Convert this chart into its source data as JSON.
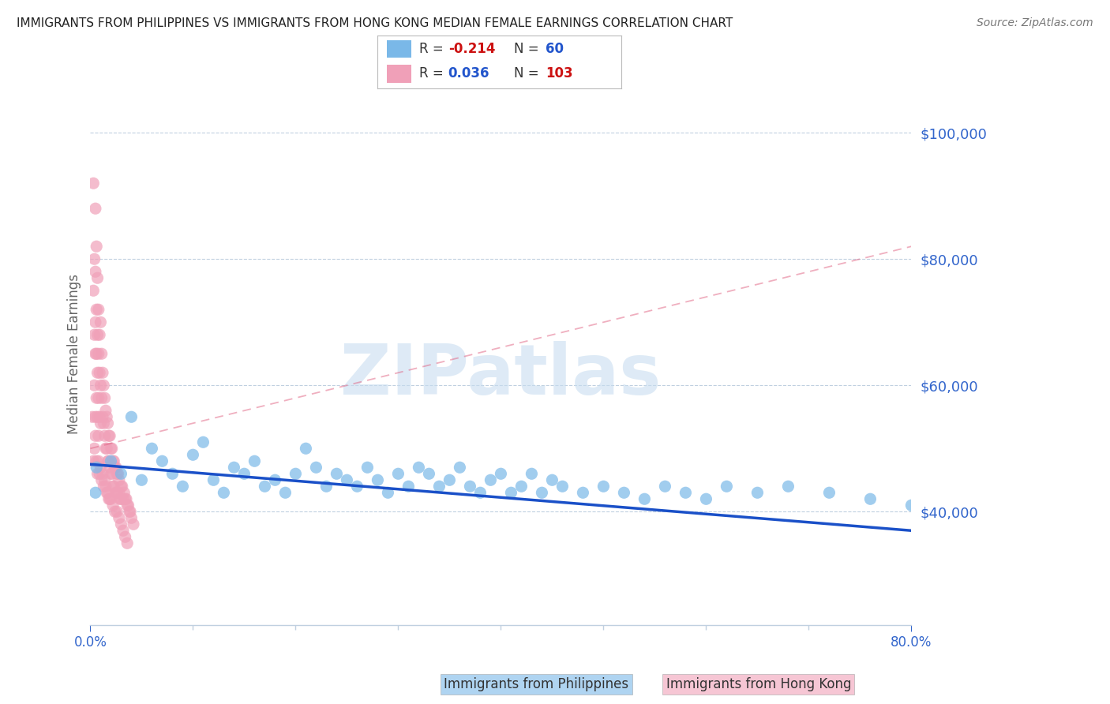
{
  "title": "IMMIGRANTS FROM PHILIPPINES VS IMMIGRANTS FROM HONG KONG MEDIAN FEMALE EARNINGS CORRELATION CHART",
  "source": "Source: ZipAtlas.com",
  "ylabel": "Median Female Earnings",
  "yticks": [
    40000,
    60000,
    80000,
    100000
  ],
  "ytick_labels": [
    "$40,000",
    "$60,000",
    "$80,000",
    "$100,000"
  ],
  "ylim": [
    22000,
    108000
  ],
  "xlim": [
    0.0,
    0.8
  ],
  "ph_color": "#7ab8e8",
  "hk_color": "#f0a0b8",
  "ph_trend_color": "#1a50c8",
  "hk_trend_color": "#e06080",
  "grid_color": "#c0d0e0",
  "background_color": "#ffffff",
  "title_color": "#222222",
  "tick_color": "#3366cc",
  "watermark_color": "#c8ddf0",
  "series_philippines_x": [
    0.02,
    0.03,
    0.04,
    0.005,
    0.006,
    0.05,
    0.06,
    0.07,
    0.08,
    0.09,
    0.1,
    0.11,
    0.12,
    0.13,
    0.14,
    0.15,
    0.16,
    0.17,
    0.18,
    0.19,
    0.2,
    0.21,
    0.22,
    0.23,
    0.24,
    0.25,
    0.26,
    0.27,
    0.28,
    0.29,
    0.3,
    0.31,
    0.32,
    0.33,
    0.34,
    0.35,
    0.36,
    0.37,
    0.38,
    0.39,
    0.4,
    0.41,
    0.42,
    0.43,
    0.44,
    0.45,
    0.46,
    0.48,
    0.5,
    0.52,
    0.54,
    0.56,
    0.58,
    0.6,
    0.62,
    0.65,
    0.68,
    0.72,
    0.76,
    0.8
  ],
  "series_philippines_y": [
    48000,
    46000,
    55000,
    43000,
    47000,
    45000,
    50000,
    48000,
    46000,
    44000,
    49000,
    51000,
    45000,
    43000,
    47000,
    46000,
    48000,
    44000,
    45000,
    43000,
    46000,
    50000,
    47000,
    44000,
    46000,
    45000,
    44000,
    47000,
    45000,
    43000,
    46000,
    44000,
    47000,
    46000,
    44000,
    45000,
    47000,
    44000,
    43000,
    45000,
    46000,
    43000,
    44000,
    46000,
    43000,
    45000,
    44000,
    43000,
    44000,
    43000,
    42000,
    44000,
    43000,
    42000,
    44000,
    43000,
    44000,
    43000,
    42000,
    41000
  ],
  "series_hongkong_x": [
    0.003,
    0.003,
    0.004,
    0.004,
    0.004,
    0.005,
    0.005,
    0.005,
    0.005,
    0.005,
    0.006,
    0.006,
    0.006,
    0.006,
    0.007,
    0.007,
    0.007,
    0.007,
    0.008,
    0.008,
    0.008,
    0.008,
    0.009,
    0.009,
    0.009,
    0.01,
    0.01,
    0.01,
    0.011,
    0.011,
    0.012,
    0.012,
    0.013,
    0.013,
    0.014,
    0.014,
    0.015,
    0.015,
    0.016,
    0.016,
    0.017,
    0.017,
    0.018,
    0.018,
    0.019,
    0.019,
    0.02,
    0.02,
    0.021,
    0.021,
    0.022,
    0.022,
    0.023,
    0.023,
    0.024,
    0.025,
    0.025,
    0.026,
    0.026,
    0.027,
    0.028,
    0.028,
    0.029,
    0.03,
    0.03,
    0.031,
    0.032,
    0.033,
    0.034,
    0.035,
    0.036,
    0.037,
    0.038,
    0.039,
    0.04,
    0.042,
    0.002,
    0.003,
    0.004,
    0.005,
    0.006,
    0.007,
    0.008,
    0.009,
    0.01,
    0.011,
    0.012,
    0.013,
    0.014,
    0.015,
    0.016,
    0.017,
    0.018,
    0.019,
    0.02,
    0.022,
    0.024,
    0.026,
    0.028,
    0.03,
    0.032,
    0.034,
    0.036
  ],
  "series_hongkong_y": [
    92000,
    75000,
    80000,
    68000,
    60000,
    88000,
    78000,
    70000,
    65000,
    55000,
    82000,
    72000,
    65000,
    58000,
    77000,
    68000,
    62000,
    55000,
    72000,
    65000,
    58000,
    52000,
    68000,
    62000,
    55000,
    70000,
    60000,
    54000,
    65000,
    58000,
    62000,
    55000,
    60000,
    54000,
    58000,
    52000,
    56000,
    50000,
    55000,
    50000,
    54000,
    48000,
    52000,
    48000,
    52000,
    47000,
    50000,
    46000,
    50000,
    46000,
    48000,
    44000,
    48000,
    44000,
    47000,
    47000,
    43000,
    46000,
    43000,
    46000,
    43000,
    45000,
    42000,
    44000,
    42000,
    44000,
    42000,
    43000,
    42000,
    42000,
    41000,
    41000,
    40000,
    40000,
    39000,
    38000,
    55000,
    48000,
    50000,
    52000,
    48000,
    46000,
    48000,
    46000,
    47000,
    45000,
    46000,
    44000,
    45000,
    44000,
    43000,
    43000,
    42000,
    42000,
    42000,
    41000,
    40000,
    40000,
    39000,
    38000,
    37000,
    36000,
    35000
  ],
  "ph_trend_x": [
    0.0,
    0.8
  ],
  "ph_trend_y": [
    47500,
    37000
  ],
  "hk_trend_x": [
    0.0,
    0.8
  ],
  "hk_trend_y": [
    50000,
    82000
  ],
  "legend_ph_label_r": "-0.214",
  "legend_ph_label_n": "60",
  "legend_hk_label_r": "0.036",
  "legend_hk_label_n": "103"
}
